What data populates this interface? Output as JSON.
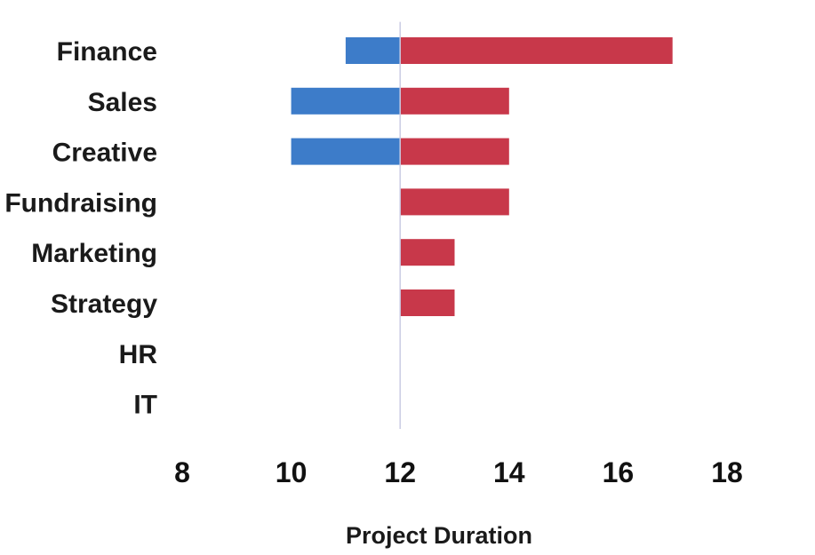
{
  "chart_data": {
    "type": "bar",
    "orientation": "horizontal",
    "layout": "tornado",
    "baseline": 12,
    "categories": [
      "Finance",
      "Sales",
      "Creative",
      "Fundraising",
      "Marketing",
      "Strategy",
      "HR",
      "IT"
    ],
    "series": [
      {
        "color": "#3d7cc9",
        "values": [
          11,
          10,
          10,
          12,
          12,
          12,
          12,
          12
        ]
      },
      {
        "color": "#c8384a",
        "values": [
          17,
          14,
          14,
          14,
          13,
          13,
          12,
          12
        ]
      }
    ],
    "xlabel": "Project Duration",
    "xlim": [
      8,
      18
    ],
    "xticks": [
      8,
      10,
      12,
      14,
      16,
      18
    ],
    "grid": false,
    "legend": "none"
  }
}
